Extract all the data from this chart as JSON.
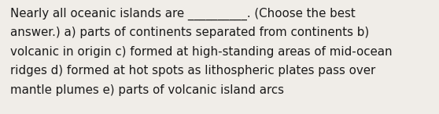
{
  "lines": [
    "Nearly all oceanic islands are __________. (Choose the best",
    "answer.) a) parts of continents separated from continents b)",
    "volcanic in origin c) formed at high-standing areas of mid-ocean",
    "ridges d) formed at hot spots as lithospheric plates pass over",
    "mantle plumes e) parts of volcanic island arcs"
  ],
  "background_color": "#f0ede8",
  "text_color": "#1a1a1a",
  "font_size": 10.8,
  "fig_width": 5.58,
  "fig_height": 1.46,
  "dpi": 100
}
